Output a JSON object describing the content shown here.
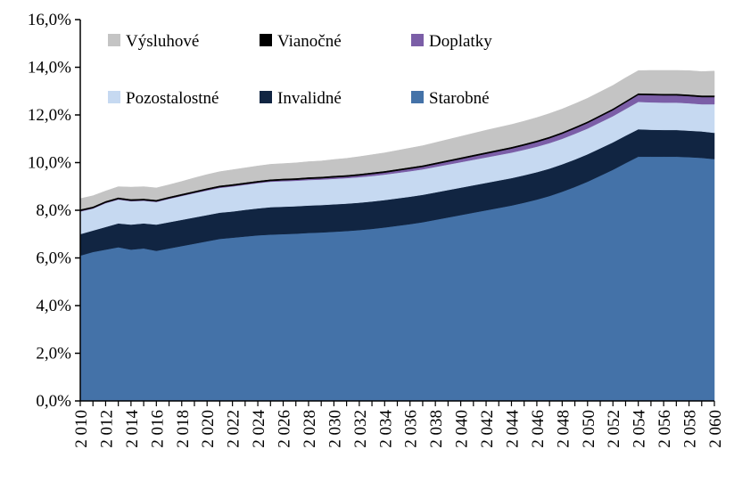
{
  "chart_data": {
    "type": "area",
    "stacked": true,
    "title": "",
    "xlabel": "",
    "ylabel": "",
    "ylim": [
      0,
      16
    ],
    "y_tick_labels": [
      "0,0%",
      "2,0%",
      "4,0%",
      "6,0%",
      "8,0%",
      "10,0%",
      "12,0%",
      "14,0%",
      "16,0%"
    ],
    "x": [
      2010,
      2011,
      2012,
      2013,
      2014,
      2015,
      2016,
      2017,
      2018,
      2019,
      2020,
      2021,
      2022,
      2023,
      2024,
      2025,
      2026,
      2027,
      2028,
      2029,
      2030,
      2031,
      2032,
      2033,
      2034,
      2035,
      2036,
      2037,
      2038,
      2039,
      2040,
      2041,
      2042,
      2043,
      2044,
      2045,
      2046,
      2047,
      2048,
      2049,
      2050,
      2051,
      2052,
      2053,
      2054,
      2055,
      2056,
      2057,
      2058,
      2059,
      2060
    ],
    "x_tick_labels": [
      "2 010",
      "2 012",
      "2 014",
      "2 016",
      "2 018",
      "2 020",
      "2 022",
      "2 024",
      "2 026",
      "2 028",
      "2 030",
      "2 032",
      "2 034",
      "2 036",
      "2 038",
      "2 040",
      "2 042",
      "2 044",
      "2 046",
      "2 048",
      "2 050",
      "2 052",
      "2 054",
      "2 056",
      "2 058",
      "2 060"
    ],
    "grid": false,
    "legend_placement": "top",
    "series": [
      {
        "name": "Starobné",
        "color": "#4472a8",
        "values": [
          6.1,
          6.25,
          6.35,
          6.45,
          6.35,
          6.4,
          6.3,
          6.4,
          6.5,
          6.6,
          6.7,
          6.8,
          6.85,
          6.9,
          6.95,
          6.98,
          7.0,
          7.02,
          7.05,
          7.07,
          7.1,
          7.13,
          7.17,
          7.22,
          7.28,
          7.35,
          7.42,
          7.5,
          7.6,
          7.7,
          7.8,
          7.9,
          8.0,
          8.1,
          8.2,
          8.32,
          8.45,
          8.6,
          8.78,
          8.98,
          9.2,
          9.45,
          9.7,
          9.98,
          10.25,
          10.25,
          10.25,
          10.25,
          10.23,
          10.2,
          10.15
        ]
      },
      {
        "name": "Invalidné",
        "color": "#112542",
        "values": [
          0.9,
          0.9,
          0.95,
          1.0,
          1.05,
          1.05,
          1.1,
          1.1,
          1.1,
          1.1,
          1.1,
          1.1,
          1.1,
          1.12,
          1.13,
          1.15,
          1.15,
          1.15,
          1.15,
          1.15,
          1.15,
          1.15,
          1.15,
          1.15,
          1.15,
          1.15,
          1.15,
          1.15,
          1.15,
          1.15,
          1.15,
          1.15,
          1.15,
          1.15,
          1.15,
          1.15,
          1.15,
          1.15,
          1.15,
          1.15,
          1.15,
          1.15,
          1.15,
          1.15,
          1.15,
          1.13,
          1.12,
          1.12,
          1.11,
          1.11,
          1.1
        ]
      },
      {
        "name": "Pozostalostné",
        "color": "#c6d9f1",
        "values": [
          0.95,
          0.92,
          1.0,
          1.0,
          0.98,
          0.95,
          0.95,
          0.98,
          1.0,
          1.02,
          1.03,
          1.04,
          1.05,
          1.05,
          1.06,
          1.07,
          1.07,
          1.07,
          1.07,
          1.07,
          1.07,
          1.07,
          1.07,
          1.07,
          1.07,
          1.07,
          1.07,
          1.07,
          1.07,
          1.07,
          1.07,
          1.07,
          1.07,
          1.07,
          1.07,
          1.07,
          1.07,
          1.07,
          1.07,
          1.08,
          1.08,
          1.09,
          1.1,
          1.12,
          1.15,
          1.15,
          1.15,
          1.15,
          1.15,
          1.14,
          1.2
        ]
      },
      {
        "name": "Doplatky",
        "color": "#7b5ea7",
        "values": [
          0.02,
          0.02,
          0.02,
          0.02,
          0.02,
          0.02,
          0.02,
          0.02,
          0.02,
          0.02,
          0.03,
          0.03,
          0.03,
          0.03,
          0.03,
          0.03,
          0.04,
          0.04,
          0.05,
          0.05,
          0.06,
          0.06,
          0.07,
          0.08,
          0.08,
          0.09,
          0.1,
          0.1,
          0.11,
          0.12,
          0.13,
          0.14,
          0.15,
          0.16,
          0.17,
          0.18,
          0.19,
          0.2,
          0.21,
          0.22,
          0.23,
          0.24,
          0.25,
          0.27,
          0.29,
          0.3,
          0.3,
          0.3,
          0.3,
          0.3,
          0.3
        ]
      },
      {
        "name": "Vianočné",
        "color": "#000000",
        "values": [
          0.07,
          0.07,
          0.07,
          0.07,
          0.07,
          0.07,
          0.07,
          0.07,
          0.07,
          0.07,
          0.07,
          0.07,
          0.07,
          0.07,
          0.07,
          0.07,
          0.07,
          0.07,
          0.07,
          0.07,
          0.07,
          0.07,
          0.07,
          0.07,
          0.07,
          0.07,
          0.07,
          0.07,
          0.07,
          0.07,
          0.07,
          0.07,
          0.07,
          0.07,
          0.07,
          0.07,
          0.07,
          0.07,
          0.07,
          0.07,
          0.07,
          0.07,
          0.07,
          0.07,
          0.07,
          0.07,
          0.07,
          0.07,
          0.07,
          0.07,
          0.07
        ]
      },
      {
        "name": "Výsluhové",
        "color": "#c4c4c4",
        "values": [
          0.45,
          0.45,
          0.42,
          0.45,
          0.5,
          0.5,
          0.5,
          0.5,
          0.52,
          0.55,
          0.57,
          0.58,
          0.6,
          0.61,
          0.62,
          0.63,
          0.63,
          0.64,
          0.65,
          0.66,
          0.68,
          0.7,
          0.72,
          0.74,
          0.76,
          0.78,
          0.8,
          0.82,
          0.84,
          0.86,
          0.88,
          0.9,
          0.92,
          0.93,
          0.94,
          0.95,
          0.96,
          0.97,
          0.97,
          0.97,
          0.97,
          0.97,
          0.97,
          0.97,
          0.95,
          0.97,
          0.98,
          0.98,
          1.0,
          1.0,
          1.02
        ]
      }
    ],
    "legend_order": [
      "Výsluhové",
      "Vianočné",
      "Doplatky",
      "Pozostalostné",
      "Invalidné",
      "Starobné"
    ]
  }
}
